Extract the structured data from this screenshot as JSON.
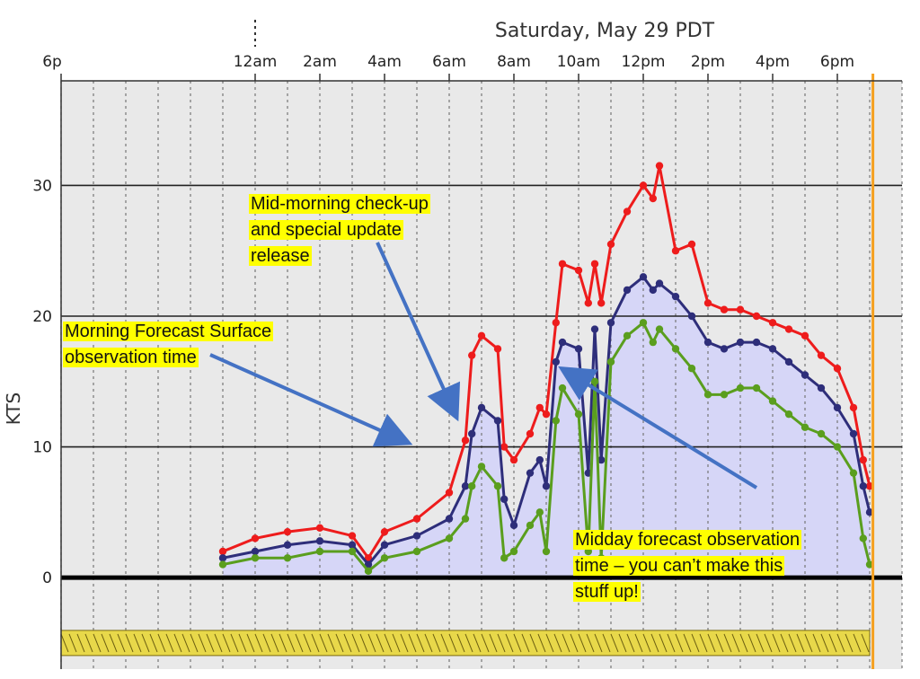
{
  "chart_data": {
    "type": "line",
    "title": "Saturday, May 29 PDT",
    "xlabel": "",
    "ylabel": "KTS",
    "x_ticks": [
      "6p",
      "12am",
      "2am",
      "4am",
      "6am",
      "8am",
      "10am",
      "12pm",
      "2pm",
      "4pm",
      "6pm"
    ],
    "y_ticks": [
      "0",
      "10",
      "20",
      "30"
    ],
    "ylim": [
      -7,
      38
    ],
    "grid": true,
    "fill_under": "lavender",
    "current_time_marker_hours": 19.1,
    "x_units": "hours after midnight",
    "series": [
      {
        "color": "#ee1c1c",
        "x": [
          -1.0,
          0,
          1,
          2,
          3,
          3.5,
          4,
          5,
          6,
          6.5,
          6.7,
          7.0,
          7.5,
          7.7,
          8.0,
          8.5,
          8.8,
          9.0,
          9.3,
          9.5,
          10.0,
          10.3,
          10.5,
          10.7,
          11.0,
          11.5,
          12.0,
          12.3,
          12.5,
          13.0,
          13.5,
          14.0,
          14.5,
          15.0,
          15.5,
          16.0,
          16.5,
          17.0,
          17.5,
          18.0,
          18.5,
          18.8,
          19.0
        ],
        "values": [
          2,
          3,
          3.5,
          3.8,
          3.2,
          1.5,
          3.5,
          4.5,
          6.5,
          10.5,
          17,
          18.5,
          17.5,
          10,
          9,
          11,
          13,
          12.5,
          19.5,
          24,
          23.5,
          21,
          24,
          21,
          25.5,
          28,
          30,
          29,
          31.5,
          25,
          25.5,
          21,
          20.5,
          20.5,
          20,
          19.5,
          19,
          18.5,
          17,
          16,
          13,
          9,
          7
        ]
      },
      {
        "color": "#2e2e7a",
        "x": [
          -1.0,
          0,
          1,
          2,
          3,
          3.5,
          4,
          5,
          6,
          6.5,
          6.7,
          7.0,
          7.5,
          7.7,
          8.0,
          8.5,
          8.8,
          9.0,
          9.3,
          9.5,
          10.0,
          10.3,
          10.5,
          10.7,
          11.0,
          11.5,
          12.0,
          12.3,
          12.5,
          13.0,
          13.5,
          14.0,
          14.5,
          15.0,
          15.5,
          16.0,
          16.5,
          17.0,
          17.5,
          18.0,
          18.5,
          18.8,
          19.0
        ],
        "values": [
          1.5,
          2,
          2.5,
          2.8,
          2.5,
          1,
          2.5,
          3.2,
          4.5,
          7,
          11,
          13,
          12,
          6,
          4,
          8,
          9,
          7,
          16.5,
          18,
          17.5,
          8,
          19,
          9,
          19.5,
          22,
          23,
          22,
          22.5,
          21.5,
          20,
          18,
          17.5,
          18,
          18,
          17.5,
          16.5,
          15.5,
          14.5,
          13,
          11,
          7,
          5
        ]
      },
      {
        "color": "#5a9e1e",
        "x": [
          -1.0,
          0,
          1,
          2,
          3,
          3.5,
          4,
          5,
          6,
          6.5,
          6.7,
          7.0,
          7.5,
          7.7,
          8.0,
          8.5,
          8.8,
          9.0,
          9.3,
          9.5,
          10.0,
          10.3,
          10.5,
          10.7,
          11.0,
          11.5,
          12.0,
          12.3,
          12.5,
          13.0,
          13.5,
          14.0,
          14.5,
          15.0,
          15.5,
          16.0,
          16.5,
          17.0,
          17.5,
          18.0,
          18.5,
          18.8,
          19.0
        ],
        "values": [
          1,
          1.5,
          1.5,
          2,
          2,
          0.5,
          1.5,
          2,
          3,
          4.5,
          7,
          8.5,
          7,
          1.5,
          2,
          4,
          5,
          2,
          12,
          14.5,
          12.5,
          2,
          15,
          1.5,
          16.5,
          18.5,
          19.5,
          18,
          19,
          17.5,
          16,
          14,
          14,
          14.5,
          14.5,
          13.5,
          12.5,
          11.5,
          11,
          10,
          8,
          3,
          1
        ]
      }
    ],
    "annotations": [
      "Morning Forecast Surface\nobservation time",
      "Mid-morning check-up\nand special update\nrelease",
      "Midday forecast observation\ntime – you can’t make this\nstuff up!"
    ]
  }
}
